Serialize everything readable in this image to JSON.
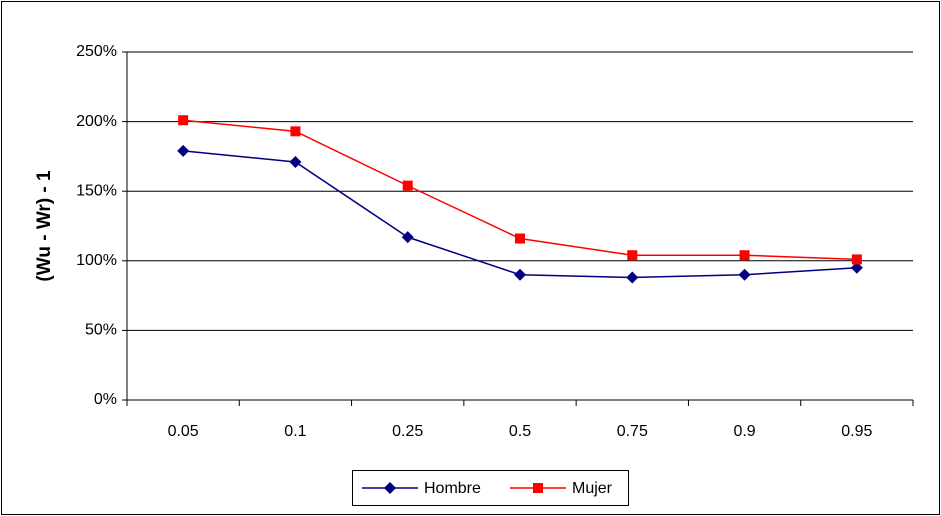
{
  "chart_data": {
    "type": "line",
    "y_label": "(Wu - Wr) - 1",
    "categories": [
      "0.05",
      "0.1",
      "0.25",
      "0.5",
      "0.75",
      "0.9",
      "0.95"
    ],
    "series": [
      {
        "name": "Hombre",
        "color": "#000080",
        "marker": "diamond",
        "values": [
          179,
          171,
          117,
          90,
          88,
          90,
          95
        ]
      },
      {
        "name": "Mujer",
        "color": "#ff0000",
        "marker": "square",
        "values": [
          201,
          193,
          154,
          116,
          104,
          104,
          101
        ]
      }
    ],
    "ylim": [
      0,
      250
    ],
    "yticks": [
      {
        "value": 0,
        "label": "0%"
      },
      {
        "value": 50,
        "label": "50%"
      },
      {
        "value": 100,
        "label": "100%"
      },
      {
        "value": 150,
        "label": "150%"
      },
      {
        "value": 200,
        "label": "200%"
      },
      {
        "value": 250,
        "label": "250%"
      }
    ],
    "grid": true,
    "legend": "bottom"
  }
}
